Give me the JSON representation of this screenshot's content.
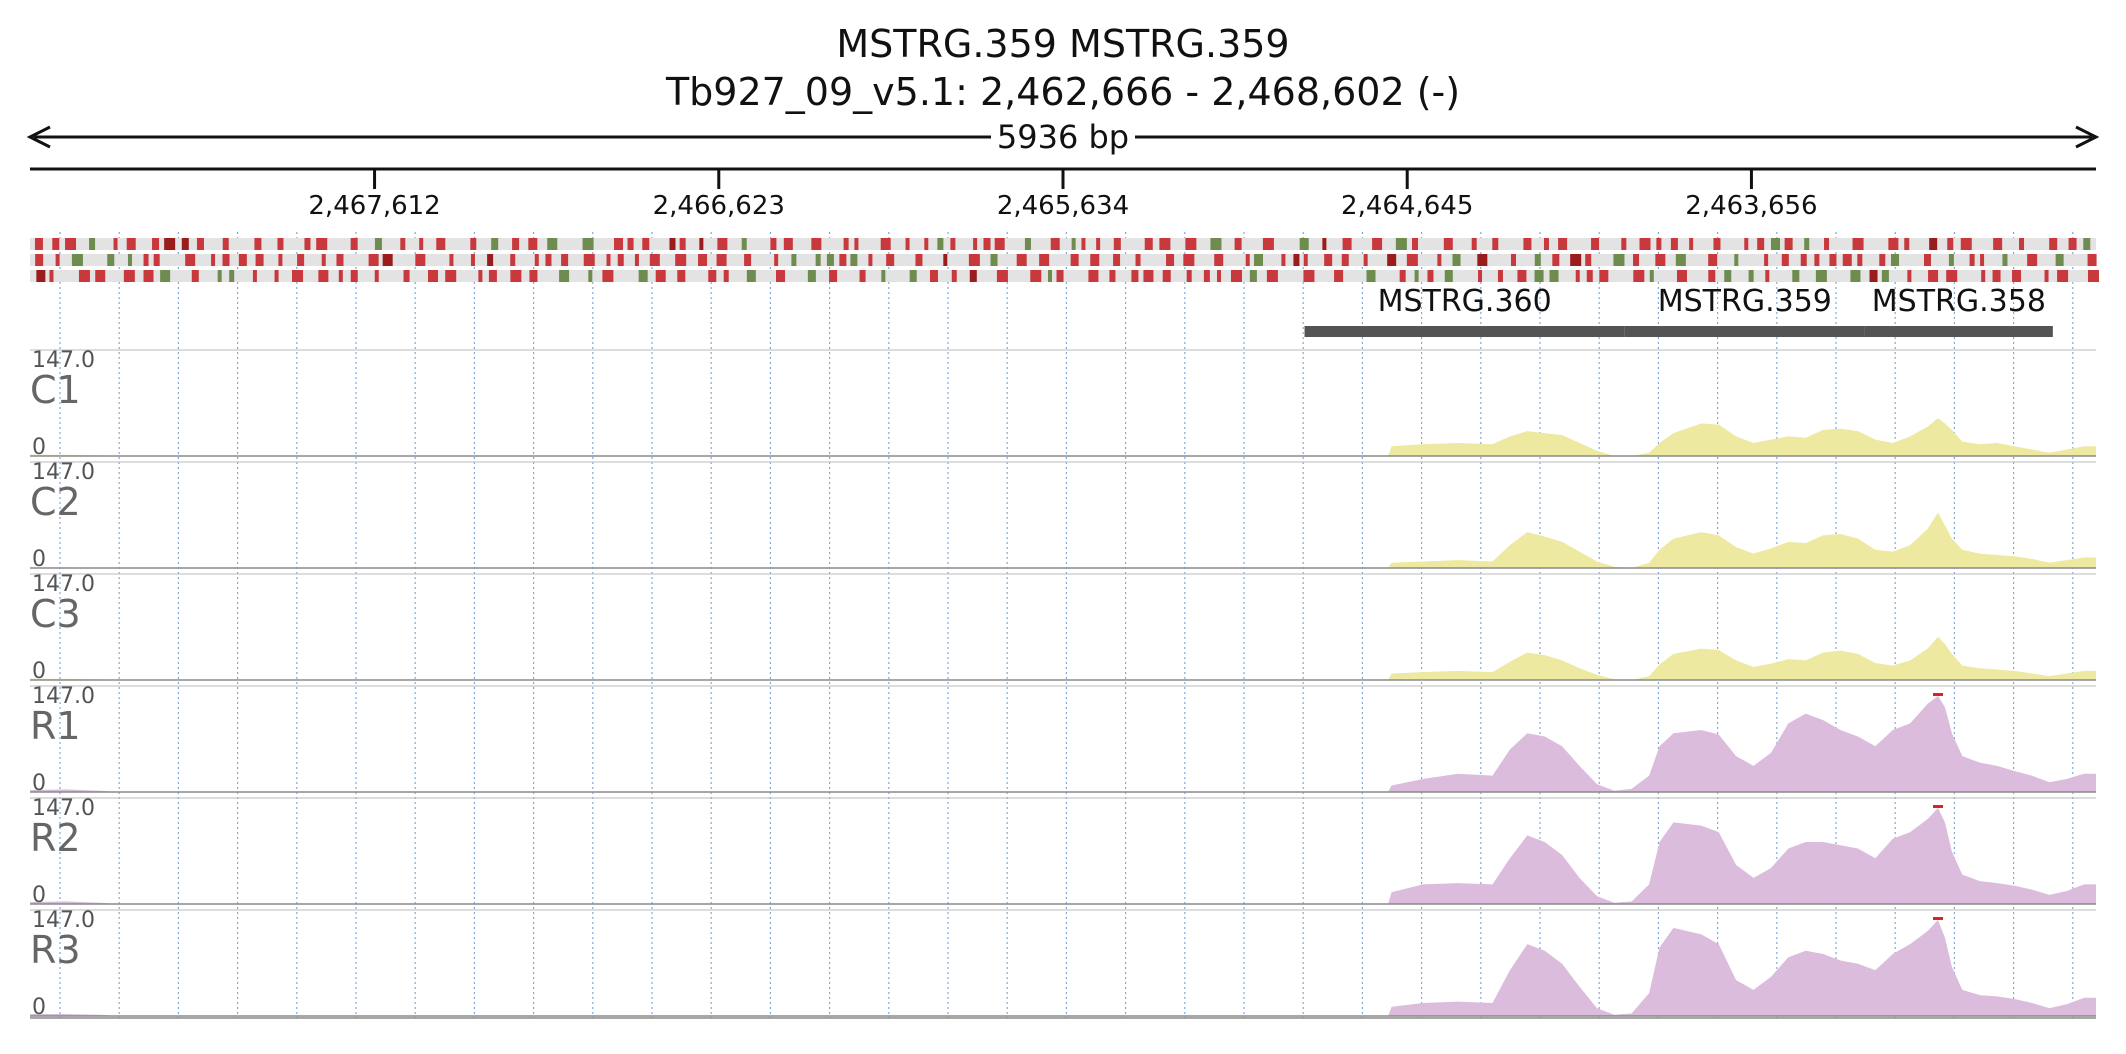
{
  "header": {
    "title": "MSTRG.359  MSTRG.359",
    "locus": "Tb927_09_v5.1: 2,462,666 - 2,468,602 (-)",
    "span": "5936 bp"
  },
  "chart_data": {
    "type": "area",
    "x_axis": {
      "start": 2468602,
      "end": 2462666,
      "reversed": true,
      "ticks": [
        "2,467,612",
        "2,466,623",
        "2,465,634",
        "2,464,645",
        "2,463,656"
      ],
      "tick_values": [
        2467612,
        2466623,
        2465634,
        2464645,
        2463656
      ]
    },
    "genes": [
      {
        "name": "MSTRG.360",
        "start": 2464940,
        "end": 2464020
      },
      {
        "name": "MSTRG.359",
        "start": 2464020,
        "end": 2463330
      },
      {
        "name": "MSTRG.358",
        "start": 2463330,
        "end": 2462790
      }
    ],
    "tracks": [
      {
        "name": "C1",
        "max_label": "147.0",
        "min_label": "0",
        "color": "#ede9a0",
        "group": "C"
      },
      {
        "name": "C2",
        "max_label": "147.0",
        "min_label": "0",
        "color": "#ede9a0",
        "group": "C"
      },
      {
        "name": "C3",
        "max_label": "147.0",
        "min_label": "0",
        "color": "#ede9a0",
        "group": "C"
      },
      {
        "name": "R1",
        "max_label": "147.0",
        "min_label": "0",
        "color": "#dcbcdc",
        "group": "R"
      },
      {
        "name": "R2",
        "max_label": "147.0",
        "min_label": "0",
        "color": "#dcbcdc",
        "group": "R"
      },
      {
        "name": "R3",
        "max_label": "147.0",
        "min_label": "0",
        "color": "#dcbcdc",
        "group": "R"
      }
    ],
    "profile_x": [
      2468602,
      2468500,
      2468400,
      2468350,
      2464700,
      2464690,
      2464600,
      2464500,
      2464400,
      2464350,
      2464300,
      2464250,
      2464200,
      2464150,
      2464100,
      2464050,
      2464000,
      2463950,
      2463920,
      2463880,
      2463800,
      2463750,
      2463700,
      2463650,
      2463600,
      2463550,
      2463500,
      2463450,
      2463400,
      2463350,
      2463300,
      2463250,
      2463200,
      2463150,
      2463120,
      2463100,
      2463080,
      2463050,
      2463000,
      2462950,
      2462900,
      2462850,
      2462800,
      2462750,
      2462700,
      2462666
    ],
    "profiles": {
      "C1": [
        2,
        2,
        1,
        0,
        0,
        15,
        18,
        20,
        18,
        30,
        38,
        35,
        32,
        20,
        8,
        0,
        0,
        5,
        20,
        35,
        50,
        48,
        30,
        20,
        25,
        30,
        28,
        40,
        42,
        38,
        25,
        20,
        30,
        45,
        58,
        50,
        40,
        22,
        18,
        20,
        15,
        10,
        5,
        10,
        15,
        15
      ],
      "C2": [
        1,
        1,
        0,
        0,
        0,
        8,
        10,
        12,
        10,
        35,
        55,
        48,
        40,
        25,
        10,
        2,
        0,
        8,
        28,
        45,
        55,
        50,
        32,
        22,
        30,
        40,
        38,
        50,
        52,
        45,
        28,
        25,
        35,
        60,
        85,
        65,
        45,
        28,
        22,
        20,
        18,
        14,
        8,
        12,
        16,
        16
      ],
      "C3": [
        2,
        2,
        1,
        0,
        0,
        10,
        12,
        14,
        12,
        28,
        42,
        38,
        30,
        18,
        8,
        1,
        0,
        6,
        24,
        40,
        48,
        46,
        30,
        20,
        25,
        32,
        30,
        42,
        45,
        40,
        26,
        22,
        30,
        48,
        66,
        55,
        40,
        22,
        18,
        16,
        14,
        10,
        6,
        10,
        14,
        14
      ],
      "R1": [
        3,
        4,
        2,
        0,
        0,
        10,
        20,
        28,
        25,
        65,
        90,
        85,
        70,
        40,
        12,
        2,
        5,
        25,
        70,
        90,
        95,
        88,
        55,
        40,
        60,
        105,
        120,
        110,
        95,
        85,
        70,
        95,
        105,
        135,
        147,
        130,
        90,
        55,
        45,
        40,
        32,
        25,
        15,
        20,
        28,
        28
      ],
      "R2": [
        3,
        4,
        2,
        0,
        0,
        18,
        30,
        32,
        30,
        70,
        105,
        95,
        75,
        40,
        12,
        2,
        4,
        30,
        95,
        125,
        120,
        110,
        60,
        40,
        55,
        85,
        95,
        95,
        90,
        85,
        70,
        100,
        110,
        130,
        147,
        125,
        80,
        45,
        35,
        32,
        28,
        22,
        14,
        20,
        30,
        30
      ],
      "R3": [
        3,
        3,
        2,
        0,
        0,
        14,
        20,
        22,
        20,
        70,
        110,
        100,
        80,
        45,
        12,
        2,
        4,
        35,
        105,
        135,
        125,
        110,
        55,
        40,
        60,
        90,
        100,
        95,
        85,
        80,
        70,
        95,
        110,
        130,
        147,
        120,
        75,
        40,
        32,
        30,
        26,
        20,
        12,
        18,
        28,
        28
      ]
    }
  }
}
